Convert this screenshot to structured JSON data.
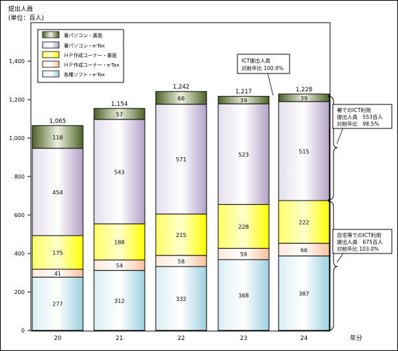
{
  "unit_label_line1": "提出人員",
  "unit_label_line2": "(単位：百人)",
  "x_axis_label": "年分",
  "chart_data": {
    "type": "bar",
    "stacked": true,
    "categories": [
      "20",
      "21",
      "22",
      "23",
      "24"
    ],
    "ylim": [
      0,
      1600
    ],
    "yticks": [
      0,
      200,
      400,
      600,
      800,
      1000,
      1200,
      1400
    ],
    "ytick_labels": [
      "0",
      "200",
      "400",
      "600",
      "800",
      "1,000",
      "1,200",
      "1,400"
    ],
    "series": [
      {
        "name": "各種ソフト・e-Tax",
        "values": [
          277,
          312,
          332,
          368,
          387
        ],
        "color": "#b7dde8"
      },
      {
        "name": "ＨＰ作成コーナー・e-Tax",
        "values": [
          41,
          54,
          58,
          59,
          66
        ],
        "color": "#fbd4b4"
      },
      {
        "name": "ＨＰ作成コーナー・書面",
        "values": [
          175,
          188,
          215,
          228,
          222
        ],
        "color": "#ffff00"
      },
      {
        "name": "署パソコン・e-Tax",
        "values": [
          454,
          543,
          571,
          523,
          515
        ],
        "color": "#ccc0da"
      },
      {
        "name": "署パソコン・書面",
        "values": [
          118,
          57,
          66,
          39,
          39
        ],
        "color": "#77933c"
      }
    ],
    "totals": [
      "1,065",
      "1,154",
      "1,242",
      "1,217",
      "1,228"
    ],
    "legend_position": "top-left",
    "grid": false
  },
  "annotations": {
    "ict_total": {
      "line1": "ICT提出人員",
      "line2": "対前年比 100.9%"
    },
    "office": {
      "line1": "署でのICT利用",
      "line2": "提出人員　553百人",
      "line3": "対前年比　98.5%"
    },
    "home": {
      "line1": "自宅等でのICT利用",
      "line2": "提出人員　675百人",
      "line3": "対前年比 103.0%"
    }
  }
}
